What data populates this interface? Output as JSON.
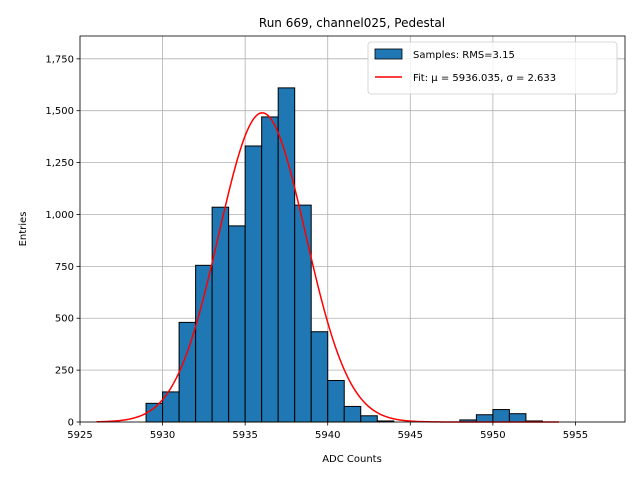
{
  "chart_data": {
    "type": "bar",
    "title": "Run 669, channel025, Pedestal",
    "xlabel": "ADC Counts",
    "ylabel": "Entries",
    "xlim": [
      5925,
      5958
    ],
    "ylim": [
      0,
      1860
    ],
    "xticks": [
      5925,
      5930,
      5935,
      5940,
      5945,
      5950,
      5955
    ],
    "yticks": [
      0,
      250,
      500,
      750,
      1000,
      1250,
      1500,
      1750
    ],
    "grid": true,
    "legend_position": "top-right",
    "bar_color": "#1f77b4",
    "fit_color": "#ff0000",
    "series": [
      {
        "name": "Samples: RMS=3.15",
        "bins": [
          {
            "x0": 5929,
            "x1": 5930,
            "value": 90
          },
          {
            "x0": 5930,
            "x1": 5931,
            "value": 145
          },
          {
            "x0": 5931,
            "x1": 5932,
            "value": 480
          },
          {
            "x0": 5932,
            "x1": 5933,
            "value": 755
          },
          {
            "x0": 5933,
            "x1": 5934,
            "value": 1035
          },
          {
            "x0": 5934,
            "x1": 5935,
            "value": 945
          },
          {
            "x0": 5935,
            "x1": 5936,
            "value": 1330
          },
          {
            "x0": 5936,
            "x1": 5937,
            "value": 1470
          },
          {
            "x0": 5937,
            "x1": 5938,
            "value": 1610
          },
          {
            "x0": 5938,
            "x1": 5939,
            "value": 1045
          },
          {
            "x0": 5939,
            "x1": 5940,
            "value": 435
          },
          {
            "x0": 5940,
            "x1": 5941,
            "value": 200
          },
          {
            "x0": 5941,
            "x1": 5942,
            "value": 75
          },
          {
            "x0": 5942,
            "x1": 5943,
            "value": 30
          },
          {
            "x0": 5943,
            "x1": 5944,
            "value": 5
          },
          {
            "x0": 5948,
            "x1": 5949,
            "value": 10
          },
          {
            "x0": 5949,
            "x1": 5950,
            "value": 35
          },
          {
            "x0": 5950,
            "x1": 5951,
            "value": 60
          },
          {
            "x0": 5951,
            "x1": 5952,
            "value": 40
          },
          {
            "x0": 5952,
            "x1": 5953,
            "value": 5
          }
        ]
      },
      {
        "name": "Fit: μ = 5936.035, σ = 2.633",
        "type": "line",
        "mu": 5936.035,
        "sigma": 2.633,
        "amplitude": 1490,
        "x_range": [
          5926,
          5954
        ]
      }
    ]
  }
}
